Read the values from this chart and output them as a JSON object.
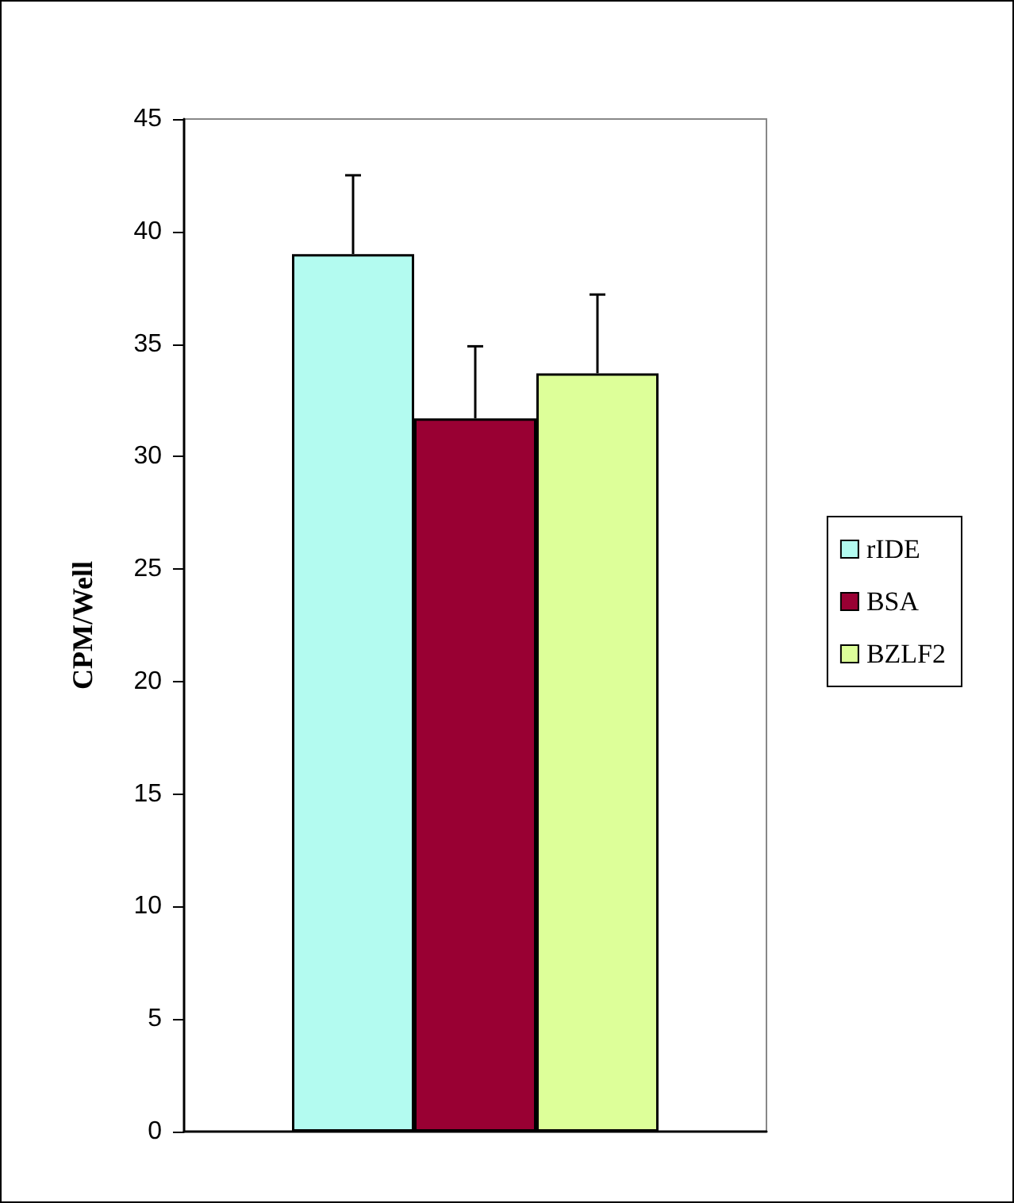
{
  "chart_data": {
    "type": "bar",
    "ylabel": "CPM/Well",
    "categories": [
      null
    ],
    "series": [
      {
        "name": "rIDE",
        "color": "#b3fbf0",
        "values": [
          39.0
        ],
        "errors": [
          [
            39.0,
            42.5
          ]
        ]
      },
      {
        "name": "BSA",
        "color": "#990033",
        "values": [
          31.7
        ],
        "errors": [
          [
            31.7,
            34.9
          ]
        ]
      },
      {
        "name": "BZLF2",
        "color": "#ddff99",
        "values": [
          33.7
        ],
        "errors": [
          [
            33.7,
            37.2
          ]
        ]
      }
    ],
    "ylim": [
      0,
      45
    ],
    "yticks": [
      0,
      5,
      10,
      15,
      20,
      25,
      30,
      35,
      40,
      45
    ],
    "grid": false,
    "legend": "right"
  }
}
